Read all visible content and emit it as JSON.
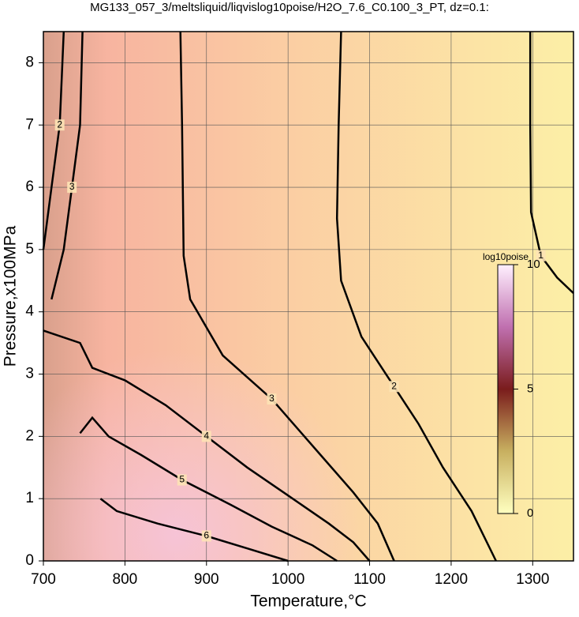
{
  "chart_data": {
    "type": "contour",
    "title": "MG133_057_3/meltsliquid/liqvislog10poise/H2O_7.6_C0.100_3_PT, dz=0.1:",
    "xlabel": "Temperature,°C",
    "ylabel": "Pressure,x100MPa",
    "xlim": [
      700,
      1350
    ],
    "ylim": [
      0,
      8.5
    ],
    "xticks": [
      700,
      800,
      900,
      1000,
      1100,
      1200,
      1300
    ],
    "yticks": [
      0,
      1,
      2,
      3,
      4,
      5,
      6,
      7,
      8
    ],
    "grid": true,
    "colorbar": {
      "label": "log10poise",
      "lim": [
        0,
        10
      ],
      "ticks": [
        0,
        5,
        10
      ]
    },
    "contours": [
      {
        "level": 1,
        "x": [
          1297,
          1297,
          1298,
          1310,
          1330,
          1350
        ],
        "y": [
          8.5,
          7,
          5.6,
          4.9,
          4.55,
          4.3
        ]
      },
      {
        "level": 2,
        "x": [
          1065,
          1062,
          1060,
          1065,
          1090,
          1130,
          1160,
          1190,
          1225,
          1255
        ],
        "y": [
          8.5,
          7,
          5.5,
          4.5,
          3.6,
          2.8,
          2.2,
          1.5,
          0.8,
          0
        ]
      },
      {
        "level": 3,
        "x": [
          868,
          870,
          872,
          880,
          920,
          980,
          1040,
          1080,
          1110,
          1130
        ],
        "y": [
          8.5,
          7,
          4.9,
          4.2,
          3.3,
          2.6,
          1.7,
          1.1,
          0.6,
          0
        ]
      },
      {
        "level": 4,
        "x": [
          700,
          745,
          760,
          800,
          850,
          900,
          950,
          1000,
          1050,
          1080,
          1100
        ],
        "y": [
          3.7,
          3.5,
          3.1,
          2.9,
          2.5,
          2.0,
          1.5,
          1.05,
          0.6,
          0.3,
          0
        ]
      },
      {
        "level": 5,
        "x": [
          745,
          760,
          780,
          820,
          870,
          930,
          980,
          1030,
          1060
        ],
        "y": [
          2.05,
          2.3,
          2.0,
          1.7,
          1.3,
          0.9,
          0.55,
          0.25,
          0
        ]
      },
      {
        "level": 6,
        "x": [
          770,
          790,
          840,
          900,
          950,
          1000
        ],
        "y": [
          1.0,
          0.8,
          0.6,
          0.4,
          0.2,
          0
        ]
      },
      {
        "level": 3,
        "x": [
          710,
          725,
          735,
          745,
          748
        ],
        "y": [
          4.2,
          5.0,
          6.0,
          7.0,
          8.5
        ]
      },
      {
        "level": 2,
        "x": [
          700,
          710,
          720,
          725
        ],
        "y": [
          5.0,
          6.0,
          7.0,
          8.5
        ]
      }
    ]
  }
}
